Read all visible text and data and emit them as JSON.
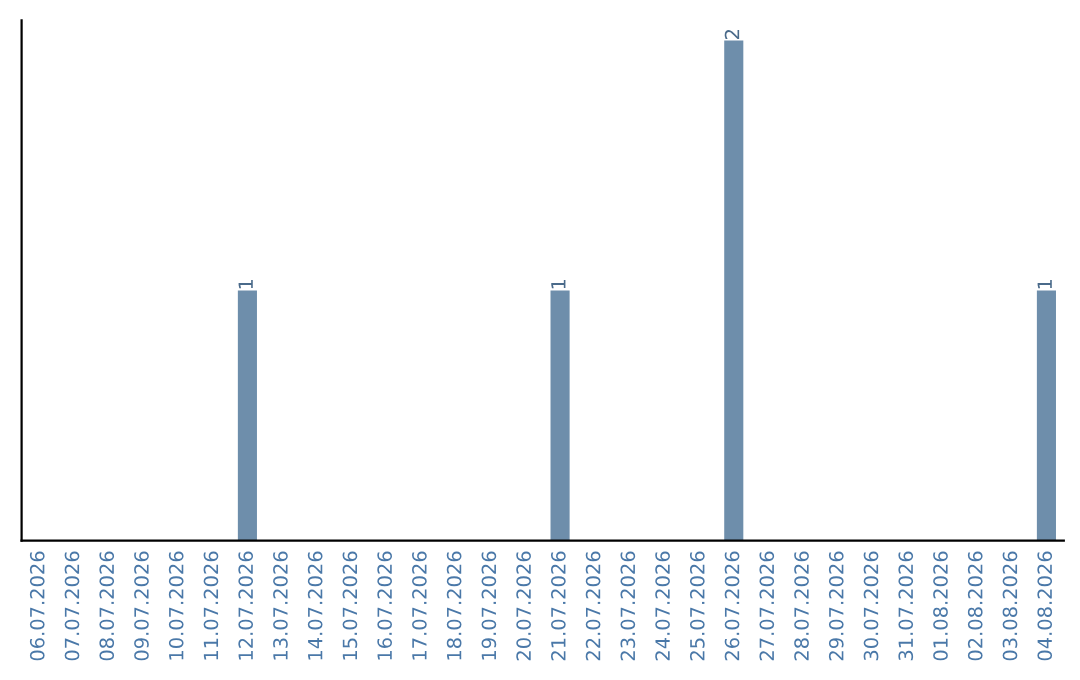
{
  "chart_data": {
    "type": "bar",
    "categories": [
      "06.07.2026",
      "07.07.2026",
      "08.07.2026",
      "09.07.2026",
      "10.07.2026",
      "11.07.2026",
      "12.07.2026",
      "13.07.2026",
      "14.07.2026",
      "15.07.2026",
      "16.07.2026",
      "17.07.2026",
      "18.07.2026",
      "19.07.2026",
      "20.07.2026",
      "21.07.2026",
      "22.07.2026",
      "23.07.2026",
      "24.07.2026",
      "25.07.2026",
      "26.07.2026",
      "27.07.2026",
      "28.07.2026",
      "29.07.2026",
      "30.07.2026",
      "31.07.2026",
      "01.08.2026",
      "02.08.2026",
      "03.08.2026",
      "04.08.2026"
    ],
    "values": [
      0,
      0,
      0,
      0,
      0,
      0,
      1,
      0,
      0,
      0,
      0,
      0,
      0,
      0,
      0,
      1,
      0,
      0,
      0,
      0,
      2,
      0,
      0,
      0,
      0,
      0,
      0,
      0,
      0,
      1
    ],
    "value_labels": [
      null,
      null,
      null,
      null,
      null,
      null,
      "1",
      null,
      null,
      null,
      null,
      null,
      null,
      null,
      null,
      "1",
      null,
      null,
      null,
      null,
      "2",
      null,
      null,
      null,
      null,
      null,
      null,
      null,
      null,
      "1"
    ],
    "color": "#6e8eab",
    "tick_labels": "x",
    "grid": false,
    "legend": false
  }
}
